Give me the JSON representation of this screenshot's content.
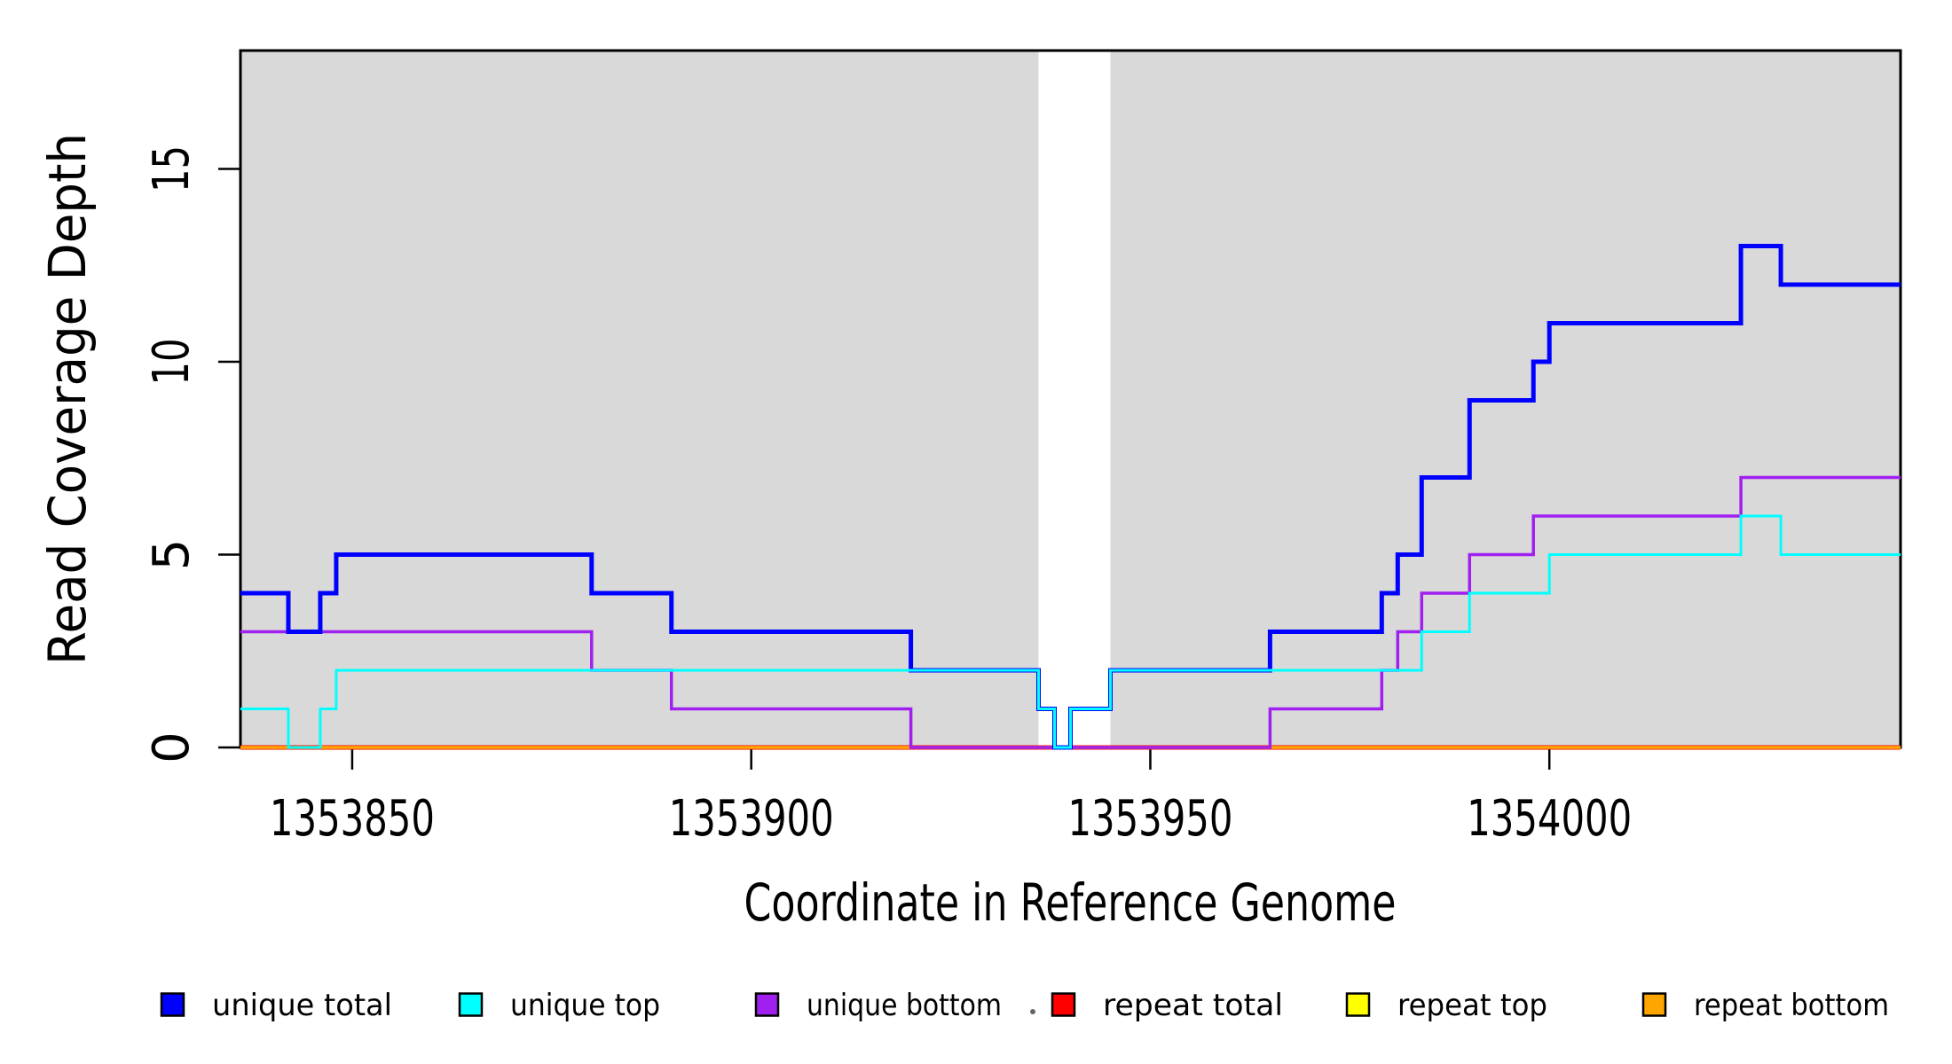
{
  "chart_data": {
    "type": "line",
    "step": "post",
    "title": "",
    "xlabel": "Coordinate in Reference Genome",
    "ylabel": "Read Coverage Depth",
    "xlim": [
      1353836,
      1354044
    ],
    "ylim": [
      0,
      18.1
    ],
    "x_ticks": [
      1353850,
      1353900,
      1353950,
      1354000
    ],
    "y_ticks": [
      0,
      5,
      10,
      15
    ],
    "grid": false,
    "legend_position": "bottom",
    "background_color": "#FFFFFF",
    "panel_color": "#D9D9D9",
    "box_color": "#000000",
    "shaded_regions": [
      {
        "x0": 1353836,
        "x1": 1353936,
        "color": "#D9D9D9"
      },
      {
        "x0": 1353945,
        "x1": 1354044,
        "color": "#D9D9D9"
      }
    ],
    "gap_region": {
      "x0": 1353936,
      "x1": 1353945,
      "color": "#FFFFFF"
    },
    "series": [
      {
        "name": "repeat top",
        "color": "#FFFF00",
        "width": 5,
        "steps": [
          [
            1353836,
            1354044,
            0
          ]
        ]
      },
      {
        "name": "repeat total",
        "color": "#FF0000",
        "width": 5,
        "steps": [
          [
            1353836,
            1354044,
            0
          ]
        ]
      },
      {
        "name": "repeat bottom",
        "color": "#FFA500",
        "width": 3.5,
        "steps": [
          [
            1353836,
            1354044,
            0
          ]
        ]
      },
      {
        "name": "unique bottom",
        "color": "#A020F0",
        "width": 3.5,
        "steps": [
          [
            1353836,
            1353880,
            3
          ],
          [
            1353880,
            1353890,
            2
          ],
          [
            1353890,
            1353920,
            1
          ],
          [
            1353920,
            1353965,
            0
          ],
          [
            1353965,
            1353979,
            1
          ],
          [
            1353979,
            1353981,
            2
          ],
          [
            1353981,
            1353984,
            3
          ],
          [
            1353984,
            1353990,
            4
          ],
          [
            1353990,
            1353998,
            5
          ],
          [
            1353998,
            1354024,
            6
          ],
          [
            1354024,
            1354044,
            7
          ]
        ]
      },
      {
        "name": "unique total",
        "color": "#0000FF",
        "width": 5,
        "steps": [
          [
            1353836,
            1353842,
            4
          ],
          [
            1353842,
            1353846,
            3
          ],
          [
            1353846,
            1353848,
            4
          ],
          [
            1353848,
            1353880,
            5
          ],
          [
            1353880,
            1353890,
            4
          ],
          [
            1353890,
            1353920,
            3
          ],
          [
            1353920,
            1353936,
            2
          ],
          [
            1353936,
            1353938,
            1
          ],
          [
            1353938,
            1353940,
            0
          ],
          [
            1353940,
            1353945,
            1
          ],
          [
            1353945,
            1353965,
            2
          ],
          [
            1353965,
            1353979,
            3
          ],
          [
            1353979,
            1353981,
            4
          ],
          [
            1353981,
            1353984,
            5
          ],
          [
            1353984,
            1353990,
            7
          ],
          [
            1353990,
            1353998,
            9
          ],
          [
            1353998,
            1354000,
            10
          ],
          [
            1354000,
            1354024,
            11
          ],
          [
            1354024,
            1354029,
            13
          ],
          [
            1354029,
            1354044,
            12
          ]
        ]
      },
      {
        "name": "unique top",
        "color": "#00FFFF",
        "width": 3,
        "steps": [
          [
            1353836,
            1353842,
            1
          ],
          [
            1353842,
            1353846,
            0
          ],
          [
            1353846,
            1353848,
            1
          ],
          [
            1353848,
            1353936,
            2
          ],
          [
            1353936,
            1353938,
            1
          ],
          [
            1353938,
            1353940,
            0
          ],
          [
            1353940,
            1353945,
            1
          ],
          [
            1353945,
            1353984,
            2
          ],
          [
            1353984,
            1353990,
            3
          ],
          [
            1353990,
            1354000,
            4
          ],
          [
            1354000,
            1354024,
            5
          ],
          [
            1354024,
            1354029,
            6
          ],
          [
            1354029,
            1354044,
            5
          ]
        ]
      }
    ],
    "legend": [
      {
        "label": "unique total",
        "color": "#0000FF"
      },
      {
        "label": "unique top",
        "color": "#00FFFF"
      },
      {
        "label": "unique bottom",
        "color": "#A020F0"
      },
      {
        "label": "repeat total",
        "color": "#FF0000"
      },
      {
        "label": "repeat top",
        "color": "#FFFF00"
      },
      {
        "label": "repeat bottom",
        "color": "#FFA500"
      }
    ],
    "stray_dot": true
  }
}
